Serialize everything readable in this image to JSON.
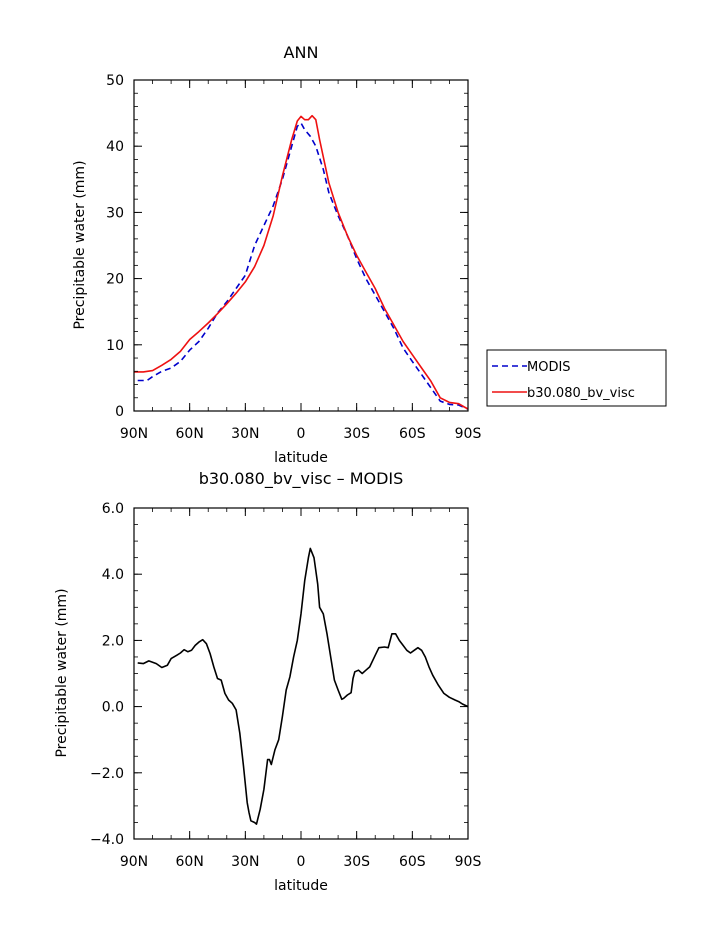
{
  "chart_data": [
    {
      "type": "line",
      "title": "ANN",
      "xlabel": "latitude",
      "ylabel": "Precipitable water (mm)",
      "xlim": [
        90,
        -90
      ],
      "ylim": [
        0,
        50
      ],
      "x_ticks": [
        {
          "value": 90,
          "label": "90N"
        },
        {
          "value": 60,
          "label": "60N"
        },
        {
          "value": 30,
          "label": "30N"
        },
        {
          "value": 0,
          "label": "0"
        },
        {
          "value": -30,
          "label": "30S"
        },
        {
          "value": -60,
          "label": "60S"
        },
        {
          "value": -90,
          "label": "90S"
        }
      ],
      "y_ticks": [
        {
          "value": 0,
          "label": "0"
        },
        {
          "value": 10,
          "label": "10"
        },
        {
          "value": 20,
          "label": "20"
        },
        {
          "value": 30,
          "label": "30"
        },
        {
          "value": 40,
          "label": "40"
        },
        {
          "value": 50,
          "label": "50"
        }
      ],
      "grid": false,
      "legend_position": "right",
      "series": [
        {
          "name": "MODIS",
          "color": "#0000cc",
          "dash": "dashed",
          "points": [
            [
              88,
              4.6
            ],
            [
              83,
              4.6
            ],
            [
              80,
              5.2
            ],
            [
              75,
              6.0
            ],
            [
              70,
              6.5
            ],
            [
              65,
              7.5
            ],
            [
              60,
              9.2
            ],
            [
              55,
              10.5
            ],
            [
              50,
              12.5
            ],
            [
              45,
              14.8
            ],
            [
              40,
              16.5
            ],
            [
              35,
              18.5
            ],
            [
              30,
              20.5
            ],
            [
              25,
              25.0
            ],
            [
              20,
              28.0
            ],
            [
              15,
              31.0
            ],
            [
              10,
              35.0
            ],
            [
              5,
              40.0
            ],
            [
              2,
              43.0
            ],
            [
              0,
              43.5
            ],
            [
              -2,
              42.5
            ],
            [
              -5,
              41.5
            ],
            [
              -8,
              40.0
            ],
            [
              -12,
              36.5
            ],
            [
              -15,
              33.0
            ],
            [
              -20,
              29.5
            ],
            [
              -25,
              26.5
            ],
            [
              -30,
              23.0
            ],
            [
              -35,
              20.0
            ],
            [
              -40,
              17.5
            ],
            [
              -45,
              15.0
            ],
            [
              -50,
              12.5
            ],
            [
              -55,
              9.5
            ],
            [
              -60,
              7.5
            ],
            [
              -65,
              5.5
            ],
            [
              -70,
              3.5
            ],
            [
              -75,
              1.5
            ],
            [
              -80,
              1.0
            ],
            [
              -85,
              0.9
            ],
            [
              -88,
              0.5
            ],
            [
              -90,
              0.3
            ]
          ]
        },
        {
          "name": "b30.080_bv_visc",
          "color": "#ee1111",
          "dash": "solid",
          "points": [
            [
              90,
              5.9
            ],
            [
              85,
              5.9
            ],
            [
              80,
              6.1
            ],
            [
              75,
              6.9
            ],
            [
              70,
              7.8
            ],
            [
              65,
              9.0
            ],
            [
              60,
              10.8
            ],
            [
              55,
              12.0
            ],
            [
              50,
              13.3
            ],
            [
              45,
              14.7
            ],
            [
              40,
              16.2
            ],
            [
              35,
              17.8
            ],
            [
              30,
              19.5
            ],
            [
              25,
              21.8
            ],
            [
              20,
              25.0
            ],
            [
              15,
              29.5
            ],
            [
              10,
              35.5
            ],
            [
              5,
              41.0
            ],
            [
              2,
              43.8
            ],
            [
              0,
              44.5
            ],
            [
              -2,
              44.0
            ],
            [
              -4,
              44.0
            ],
            [
              -6,
              44.6
            ],
            [
              -8,
              44.0
            ],
            [
              -10,
              41.0
            ],
            [
              -15,
              34.5
            ],
            [
              -20,
              30.0
            ],
            [
              -25,
              26.5
            ],
            [
              -30,
              23.5
            ],
            [
              -35,
              21.0
            ],
            [
              -40,
              18.5
            ],
            [
              -45,
              15.5
            ],
            [
              -50,
              13.0
            ],
            [
              -55,
              10.5
            ],
            [
              -60,
              8.5
            ],
            [
              -65,
              6.5
            ],
            [
              -70,
              4.5
            ],
            [
              -75,
              2.0
            ],
            [
              -80,
              1.3
            ],
            [
              -85,
              1.1
            ],
            [
              -88,
              0.6
            ],
            [
              -90,
              0.3
            ]
          ]
        }
      ]
    },
    {
      "type": "line",
      "title": "b30.080_bv_visc – MODIS",
      "xlabel": "latitude",
      "ylabel": "Precipitable water (mm)",
      "xlim": [
        90,
        -90
      ],
      "ylim": [
        -4,
        6
      ],
      "x_ticks": [
        {
          "value": 90,
          "label": "90N"
        },
        {
          "value": 60,
          "label": "60N"
        },
        {
          "value": 30,
          "label": "30N"
        },
        {
          "value": 0,
          "label": "0"
        },
        {
          "value": -30,
          "label": "30S"
        },
        {
          "value": -60,
          "label": "60S"
        },
        {
          "value": -90,
          "label": "90S"
        }
      ],
      "y_ticks": [
        {
          "value": -4,
          "label": "−4.0"
        },
        {
          "value": -2,
          "label": "−2.0"
        },
        {
          "value": 0,
          "label": "0.0"
        },
        {
          "value": 2,
          "label": "2.0"
        },
        {
          "value": 4,
          "label": "4.0"
        },
        {
          "value": 6,
          "label": "6.0"
        }
      ],
      "grid": false,
      "series": [
        {
          "color": "#000000",
          "dash": "solid",
          "points": [
            [
              88,
              1.32
            ],
            [
              85,
              1.3
            ],
            [
              82,
              1.38
            ],
            [
              78,
              1.3
            ],
            [
              75,
              1.18
            ],
            [
              72,
              1.25
            ],
            [
              70,
              1.45
            ],
            [
              67,
              1.55
            ],
            [
              65,
              1.62
            ],
            [
              63,
              1.72
            ],
            [
              61,
              1.66
            ],
            [
              59,
              1.7
            ],
            [
              57,
              1.85
            ],
            [
              55,
              1.95
            ],
            [
              53,
              2.02
            ],
            [
              51,
              1.9
            ],
            [
              49,
              1.6
            ],
            [
              47,
              1.2
            ],
            [
              45,
              0.85
            ],
            [
              43,
              0.8
            ],
            [
              41,
              0.4
            ],
            [
              39,
              0.2
            ],
            [
              37,
              0.1
            ],
            [
              35,
              -0.1
            ],
            [
              33,
              -0.8
            ],
            [
              31,
              -1.8
            ],
            [
              29,
              -2.9
            ],
            [
              28,
              -3.2
            ],
            [
              27,
              -3.45
            ],
            [
              25,
              -3.5
            ],
            [
              24,
              -3.55
            ],
            [
              22,
              -3.1
            ],
            [
              20,
              -2.5
            ],
            [
              18,
              -1.6
            ],
            [
              17,
              -1.6
            ],
            [
              16,
              -1.75
            ],
            [
              14,
              -1.3
            ],
            [
              12,
              -1.0
            ],
            [
              10,
              -0.3
            ],
            [
              8,
              0.5
            ],
            [
              6,
              0.9
            ],
            [
              4,
              1.5
            ],
            [
              2,
              2.0
            ],
            [
              0,
              2.8
            ],
            [
              -2,
              3.8
            ],
            [
              -4,
              4.5
            ],
            [
              -5,
              4.78
            ],
            [
              -7,
              4.5
            ],
            [
              -9,
              3.7
            ],
            [
              -10,
              3.0
            ],
            [
              -12,
              2.8
            ],
            [
              -14,
              2.2
            ],
            [
              -16,
              1.5
            ],
            [
              -18,
              0.8
            ],
            [
              -20,
              0.5
            ],
            [
              -22,
              0.22
            ],
            [
              -23,
              0.25
            ],
            [
              -25,
              0.35
            ],
            [
              -27,
              0.42
            ],
            [
              -28,
              0.85
            ],
            [
              -29,
              1.05
            ],
            [
              -31,
              1.1
            ],
            [
              -33,
              1.0
            ],
            [
              -35,
              1.1
            ],
            [
              -37,
              1.2
            ],
            [
              -40,
              1.55
            ],
            [
              -42,
              1.78
            ],
            [
              -45,
              1.8
            ],
            [
              -47,
              1.78
            ],
            [
              -49,
              2.2
            ],
            [
              -51,
              2.2
            ],
            [
              -53,
              2.0
            ],
            [
              -55,
              1.85
            ],
            [
              -57,
              1.7
            ],
            [
              -59,
              1.62
            ],
            [
              -61,
              1.7
            ],
            [
              -63,
              1.78
            ],
            [
              -65,
              1.7
            ],
            [
              -67,
              1.5
            ],
            [
              -69,
              1.2
            ],
            [
              -71,
              0.95
            ],
            [
              -74,
              0.65
            ],
            [
              -77,
              0.4
            ],
            [
              -80,
              0.28
            ],
            [
              -83,
              0.2
            ],
            [
              -85,
              0.15
            ],
            [
              -87,
              0.08
            ],
            [
              -90,
              0.0
            ]
          ]
        }
      ]
    }
  ]
}
